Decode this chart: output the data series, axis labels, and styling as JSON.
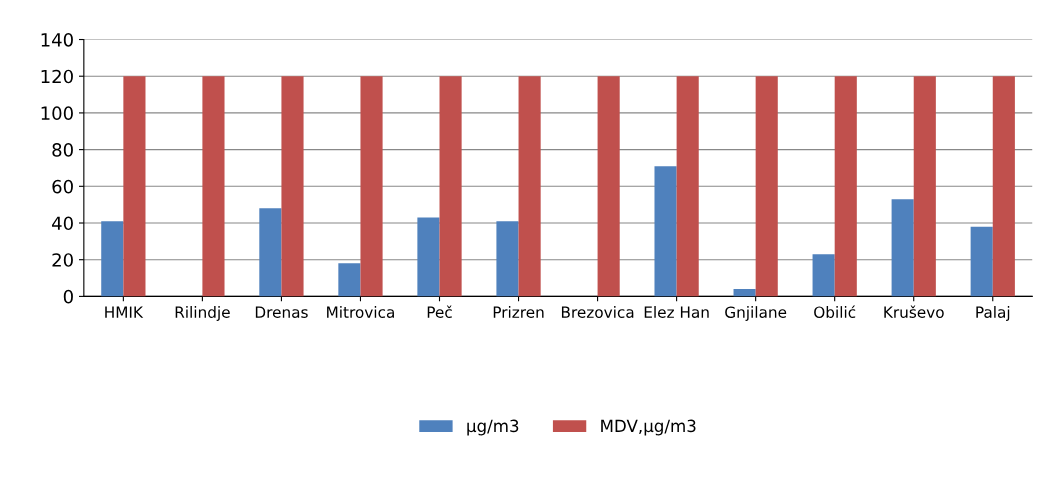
{
  "chart_data": {
    "type": "bar",
    "categories": [
      "HMIK",
      "Rilindje",
      "Drenas",
      "Mitrovica",
      "Peč",
      "Prizren",
      "Brezovica",
      "Elez Han",
      "Gnjilane",
      "Obilić",
      "Kruševo",
      "Palaj"
    ],
    "series": [
      {
        "name": "µg/m3",
        "color": "#4f81bd",
        "values": [
          41,
          null,
          48,
          18,
          43,
          41,
          null,
          71,
          4,
          23,
          53,
          38
        ]
      },
      {
        "name": "MDV,µg/m3",
        "color": "#c0504d",
        "values": [
          120,
          120,
          120,
          120,
          120,
          120,
          120,
          120,
          120,
          120,
          120,
          120
        ]
      }
    ],
    "ylim": [
      0,
      140
    ],
    "yticks": [
      0,
      20,
      40,
      60,
      80,
      100,
      120,
      140
    ],
    "grid": "y",
    "legend": "bottom"
  }
}
